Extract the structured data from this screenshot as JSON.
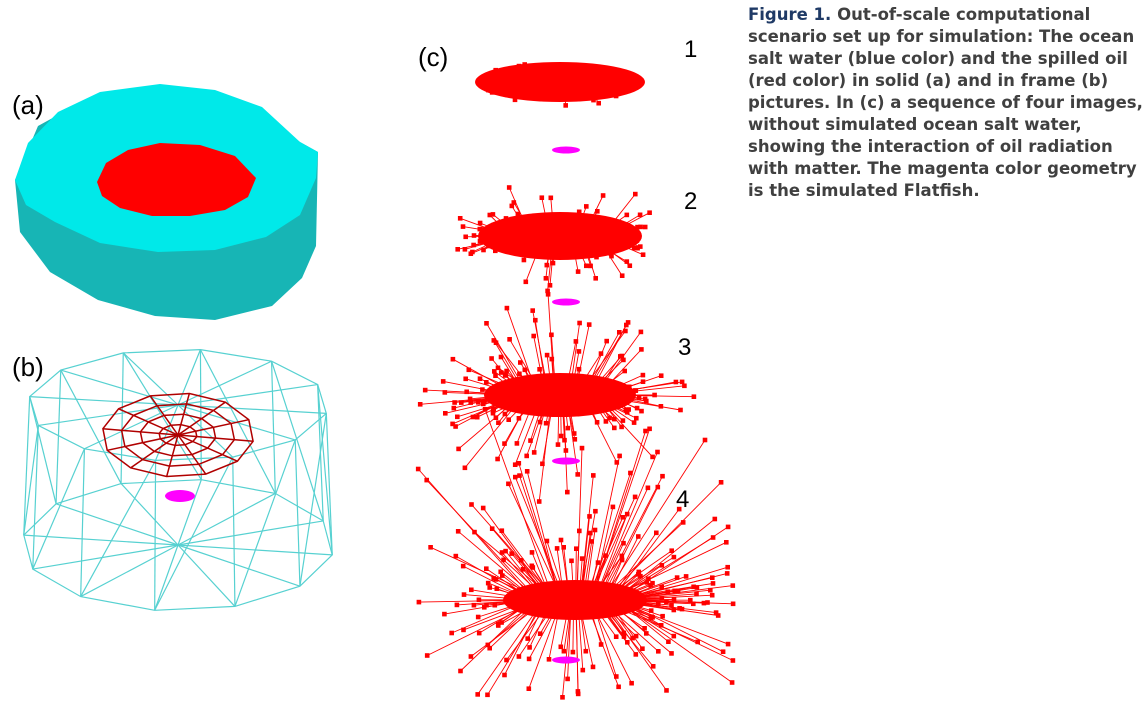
{
  "panels": {
    "a": "(a)",
    "b": "(b)",
    "c": "(c)"
  },
  "sequence_numbers": [
    "1",
    "2",
    "3",
    "4"
  ],
  "caption": {
    "lead": "Figure 1.",
    "text": "Out-of-scale computational scenario set up for simulation: The ocean salt water (blue color) and the spilled oil (red color) in solid (a) and in frame (b) pictures. In (c) a sequence of four images, without simulated ocean salt water, showing the interaction of oil radiation with matter. The magenta color geometry is the simulated Flatfish."
  },
  "colors": {
    "water": "#00e5e5",
    "water_side": "#17b5b5",
    "oil": "#ff0000",
    "oil_frame": "#a40000",
    "wire": "#54d3d3",
    "flatfish": "#ff00ff"
  }
}
